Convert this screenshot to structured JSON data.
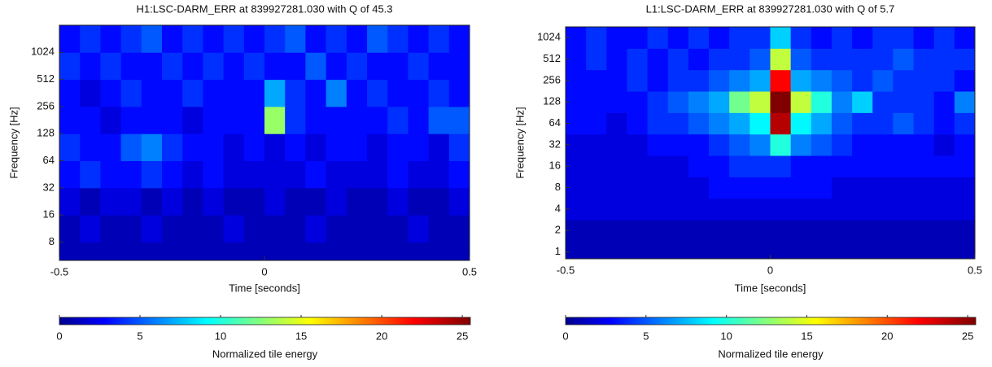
{
  "chart_data": [
    {
      "type": "heatmap",
      "title": "H1:LSC-DARM_ERR at 839927281.030 with Q of 45.3",
      "xlabel": "Time [seconds]",
      "ylabel": "Frequency [Hz]",
      "colorbar_label": "Normalized tile energy",
      "x": [
        -0.475,
        -0.425,
        -0.375,
        -0.325,
        -0.275,
        -0.225,
        -0.175,
        -0.125,
        -0.075,
        -0.025,
        0.025,
        0.075,
        0.125,
        0.175,
        0.225,
        0.275,
        0.325,
        0.375,
        0.425,
        0.475
      ],
      "y": [
        5.7,
        11.3,
        22.6,
        45.3,
        90.5,
        181,
        362,
        724,
        1448
      ],
      "values": [
        [
          1,
          1,
          1,
          1,
          1,
          1,
          1,
          1,
          1,
          1,
          1,
          1,
          1,
          1,
          1,
          1,
          1,
          1,
          1,
          1
        ],
        [
          1,
          2,
          1,
          1,
          2,
          1,
          1,
          1,
          2,
          1,
          1,
          1,
          2,
          1,
          1,
          1,
          1,
          2,
          1,
          1
        ],
        [
          2,
          1,
          2,
          2,
          1,
          2,
          1,
          2,
          1,
          1,
          2,
          1,
          1,
          2,
          1,
          1,
          2,
          1,
          1,
          2
        ],
        [
          3,
          4,
          3,
          3,
          4,
          3,
          2,
          3,
          2,
          2,
          2,
          2,
          3,
          2,
          2,
          2,
          3,
          2,
          2,
          3
        ],
        [
          4,
          3,
          3,
          5,
          6,
          4,
          3,
          3,
          2,
          3,
          2,
          3,
          2,
          3,
          3,
          2,
          3,
          3,
          2,
          4
        ],
        [
          3,
          3,
          2,
          3,
          3,
          3,
          2,
          3,
          3,
          3,
          13,
          4,
          3,
          3,
          3,
          3,
          4,
          3,
          5,
          5
        ],
        [
          3,
          2,
          3,
          4,
          3,
          3,
          4,
          3,
          3,
          3,
          7,
          4,
          3,
          6,
          3,
          4,
          3,
          3,
          4,
          3
        ],
        [
          4,
          3,
          4,
          3,
          3,
          4,
          3,
          4,
          3,
          4,
          3,
          3,
          5,
          3,
          4,
          3,
          3,
          4,
          3,
          3
        ],
        [
          3,
          4,
          3,
          4,
          5,
          3,
          4,
          3,
          4,
          3,
          4,
          5,
          3,
          4,
          3,
          5,
          4,
          3,
          4,
          3
        ]
      ],
      "xlim": [
        -0.5,
        0.5
      ],
      "xticks": [
        -0.5,
        0,
        0.5
      ],
      "ylim": [
        5,
        2048
      ],
      "yticks": [
        8,
        16,
        32,
        64,
        128,
        256,
        512,
        1024
      ],
      "yscale": "log",
      "clim": [
        0,
        25.5
      ],
      "cticks": [
        0,
        5,
        10,
        15,
        20,
        25
      ],
      "colormap": "jet"
    },
    {
      "type": "heatmap",
      "title": "L1:LSC-DARM_ERR at 839927281.030 with Q of 5.7",
      "xlabel": "Time [seconds]",
      "ylabel": "Frequency [Hz]",
      "colorbar_label": "Normalized tile energy",
      "x": [
        -0.475,
        -0.425,
        -0.375,
        -0.325,
        -0.275,
        -0.225,
        -0.175,
        -0.125,
        -0.075,
        -0.025,
        0.025,
        0.075,
        0.125,
        0.175,
        0.225,
        0.275,
        0.325,
        0.375,
        0.425,
        0.475
      ],
      "y": [
        1,
        2,
        4,
        8,
        16,
        32,
        64,
        128,
        256,
        512,
        1024
      ],
      "values": [
        [
          1,
          1,
          1,
          1,
          1,
          1,
          1,
          1,
          1,
          1,
          1,
          1,
          1,
          1,
          1,
          1,
          1,
          1,
          1,
          1
        ],
        [
          1,
          1,
          1,
          1,
          1,
          1,
          1,
          1,
          1,
          1,
          1,
          1,
          1,
          1,
          1,
          1,
          1,
          1,
          1,
          1
        ],
        [
          2,
          2,
          2,
          2,
          2,
          2,
          2,
          2,
          2,
          2,
          2,
          2,
          2,
          2,
          2,
          2,
          2,
          2,
          2,
          2
        ],
        [
          2,
          2,
          2,
          2,
          2,
          2,
          2,
          3,
          3,
          3,
          3,
          3,
          3,
          2,
          2,
          2,
          2,
          2,
          2,
          2
        ],
        [
          2,
          2,
          2,
          2,
          2,
          2,
          3,
          3,
          4,
          4,
          4,
          3,
          3,
          3,
          3,
          3,
          3,
          3,
          3,
          3
        ],
        [
          2,
          2,
          2,
          2,
          3,
          3,
          3,
          4,
          5,
          6,
          10,
          6,
          5,
          4,
          3,
          3,
          3,
          3,
          2,
          3
        ],
        [
          3,
          3,
          2,
          3,
          4,
          4,
          5,
          6,
          7,
          9,
          24,
          9,
          7,
          5,
          4,
          4,
          5,
          4,
          3,
          4
        ],
        [
          3,
          3,
          3,
          3,
          4,
          5,
          6,
          7,
          12,
          14,
          26,
          14,
          10,
          6,
          8,
          4,
          4,
          4,
          3,
          6
        ],
        [
          3,
          3,
          3,
          4,
          3,
          4,
          4,
          5,
          6,
          7,
          22,
          7,
          6,
          5,
          4,
          5,
          4,
          4,
          4,
          3
        ],
        [
          3,
          4,
          3,
          4,
          3,
          4,
          3,
          4,
          4,
          5,
          14,
          5,
          4,
          4,
          4,
          4,
          5,
          4,
          4,
          4
        ],
        [
          3,
          4,
          3,
          3,
          4,
          3,
          4,
          3,
          4,
          4,
          8,
          4,
          3,
          4,
          3,
          4,
          4,
          3,
          4,
          3
        ]
      ],
      "xlim": [
        -0.5,
        0.5
      ],
      "xticks": [
        -0.5,
        0,
        0.5
      ],
      "ylim": [
        0.8,
        1450
      ],
      "yticks": [
        1,
        2,
        4,
        8,
        16,
        32,
        64,
        128,
        256,
        512,
        1024
      ],
      "yscale": "log",
      "clim": [
        0,
        25.5
      ],
      "cticks": [
        0,
        5,
        10,
        15,
        20,
        25
      ],
      "colormap": "jet"
    }
  ]
}
